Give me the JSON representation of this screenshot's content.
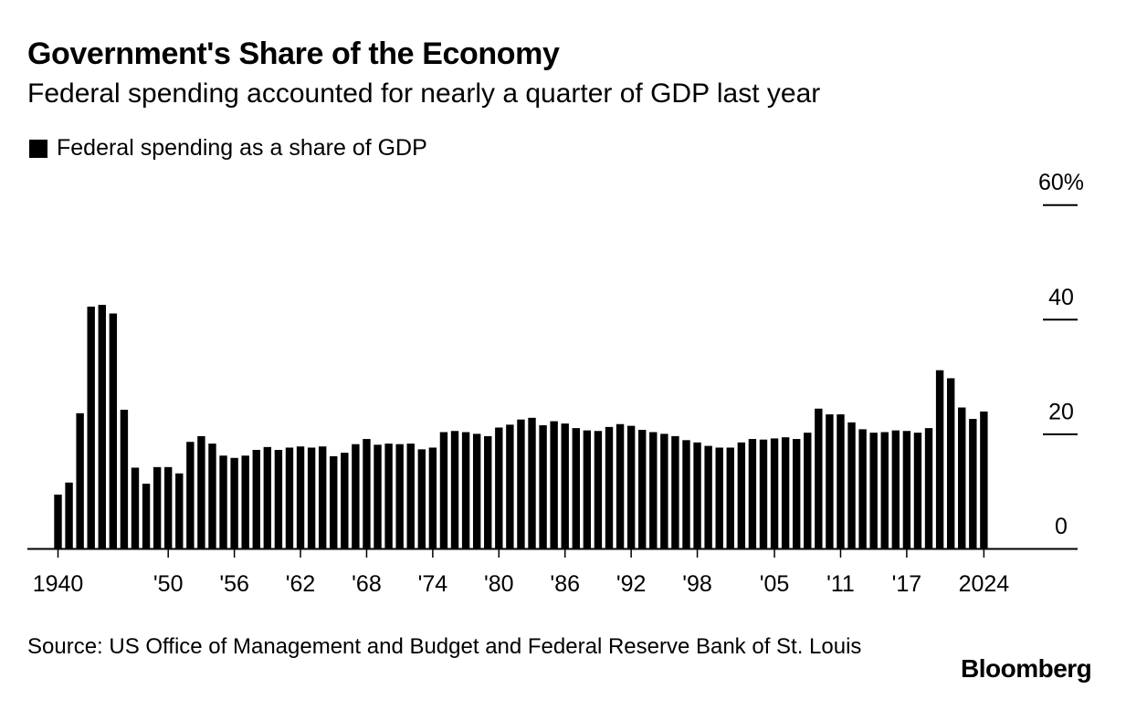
{
  "header": {
    "title": "Government's Share of the Economy",
    "subtitle": "Federal spending accounted for nearly a quarter of GDP last year"
  },
  "legend": {
    "label": "Federal spending as a share of GDP",
    "color": "#000000"
  },
  "footer": {
    "source": "Source: US Office of Management and Budget and Federal Reserve Bank of St. Louis",
    "brand": "Bloomberg"
  },
  "chart_data": {
    "type": "bar",
    "title": "Government's Share of the Economy",
    "subtitle": "Federal spending accounted for nearly a quarter of GDP last year",
    "xlabel": "",
    "ylabel": "",
    "ylim": [
      0,
      60
    ],
    "y_ticks": [
      0,
      20,
      40,
      60
    ],
    "y_tick_labels": [
      "0",
      "20",
      "40",
      "60%"
    ],
    "y_axis_side": "right",
    "grid": false,
    "legend_position": "top-left",
    "bar_color": "#000000",
    "x_tick_labels": [
      {
        "year": 1940,
        "label": "1940"
      },
      {
        "year": 1950,
        "label": "'50"
      },
      {
        "year": 1956,
        "label": "'56"
      },
      {
        "year": 1962,
        "label": "'62"
      },
      {
        "year": 1968,
        "label": "'68"
      },
      {
        "year": 1974,
        "label": "'74"
      },
      {
        "year": 1980,
        "label": "'80"
      },
      {
        "year": 1986,
        "label": "'86"
      },
      {
        "year": 1992,
        "label": "'92"
      },
      {
        "year": 1998,
        "label": "'98"
      },
      {
        "year": 2005,
        "label": "'05"
      },
      {
        "year": 2011,
        "label": "'11"
      },
      {
        "year": 2017,
        "label": "'17"
      },
      {
        "year": 2024,
        "label": "2024"
      }
    ],
    "series": [
      {
        "name": "Federal spending as a share of GDP",
        "x": [
          1940,
          1941,
          1942,
          1943,
          1944,
          1945,
          1946,
          1947,
          1948,
          1949,
          1950,
          1951,
          1952,
          1953,
          1954,
          1955,
          1956,
          1957,
          1958,
          1959,
          1960,
          1961,
          1962,
          1963,
          1964,
          1965,
          1966,
          1967,
          1968,
          1969,
          1970,
          1971,
          1972,
          1973,
          1974,
          1975,
          1976,
          1977,
          1978,
          1979,
          1980,
          1981,
          1982,
          1983,
          1984,
          1985,
          1986,
          1987,
          1988,
          1989,
          1990,
          1991,
          1992,
          1993,
          1994,
          1995,
          1996,
          1997,
          1998,
          1999,
          2000,
          2001,
          2002,
          2003,
          2004,
          2005,
          2006,
          2007,
          2008,
          2009,
          2010,
          2011,
          2012,
          2013,
          2014,
          2015,
          2016,
          2017,
          2018,
          2019,
          2020,
          2021,
          2022,
          2023,
          2024
        ],
        "values": [
          9.4,
          11.5,
          23.6,
          42.2,
          42.5,
          41.0,
          24.2,
          14.1,
          11.3,
          14.2,
          14.2,
          13.1,
          18.6,
          19.6,
          18.3,
          16.2,
          15.8,
          16.2,
          17.2,
          17.7,
          17.2,
          17.6,
          17.8,
          17.6,
          17.8,
          16.1,
          16.7,
          18.2,
          19.1,
          18.1,
          18.3,
          18.2,
          18.3,
          17.3,
          17.6,
          20.3,
          20.5,
          20.3,
          20.0,
          19.6,
          21.1,
          21.6,
          22.5,
          22.8,
          21.5,
          22.2,
          21.8,
          21.0,
          20.6,
          20.5,
          21.2,
          21.7,
          21.4,
          20.7,
          20.3,
          20.0,
          19.6,
          18.9,
          18.5,
          17.9,
          17.6,
          17.6,
          18.5,
          19.1,
          19.0,
          19.2,
          19.4,
          19.1,
          20.2,
          24.4,
          23.4,
          23.4,
          22.0,
          20.8,
          20.2,
          20.3,
          20.6,
          20.5,
          20.2,
          21.0,
          31.1,
          29.7,
          24.6,
          22.6,
          23.9
        ]
      }
    ]
  }
}
